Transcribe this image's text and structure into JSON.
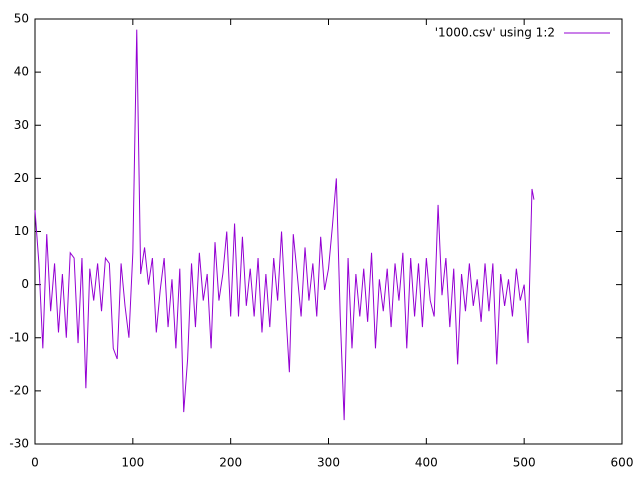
{
  "chart_data": {
    "type": "line",
    "xlim": [
      0,
      600
    ],
    "xticks": [
      0,
      100,
      200,
      300,
      400,
      500,
      600
    ],
    "ylim": [
      -30,
      50
    ],
    "yticks": [
      -30,
      -20,
      -10,
      0,
      10,
      20,
      30,
      40,
      50
    ],
    "legend": "top-right",
    "series": [
      {
        "name": "'1000.csv' using 1:2",
        "color": "#9400d3",
        "x": [
          0,
          4,
          8,
          12,
          16,
          20,
          24,
          28,
          32,
          36,
          40,
          44,
          48,
          52,
          56,
          60,
          64,
          68,
          72,
          76,
          80,
          84,
          88,
          92,
          96,
          100,
          104,
          108,
          112,
          116,
          120,
          124,
          128,
          132,
          136,
          140,
          144,
          148,
          152,
          156,
          160,
          164,
          168,
          172,
          176,
          180,
          184,
          188,
          192,
          196,
          200,
          204,
          208,
          212,
          216,
          220,
          224,
          228,
          232,
          236,
          240,
          244,
          248,
          252,
          256,
          260,
          264,
          268,
          272,
          276,
          280,
          284,
          288,
          292,
          296,
          300,
          304,
          308,
          312,
          316,
          320,
          324,
          328,
          332,
          336,
          340,
          344,
          348,
          352,
          356,
          360,
          364,
          368,
          372,
          376,
          380,
          384,
          388,
          392,
          396,
          400,
          404,
          408,
          412,
          416,
          420,
          424,
          428,
          432,
          436,
          440,
          444,
          448,
          452,
          456,
          460,
          464,
          468,
          472,
          476,
          480,
          484,
          488,
          492,
          496,
          500,
          504,
          508,
          510
        ],
        "values": [
          14,
          4,
          -12,
          9.5,
          -5,
          4,
          -9,
          2,
          -10,
          6,
          5,
          -11,
          5,
          -19.5,
          3,
          -3,
          4,
          -5,
          5,
          4,
          -12,
          -14,
          4,
          -4,
          -10,
          6,
          48,
          2,
          7,
          0,
          5,
          -9,
          -1,
          5,
          -8,
          1,
          -12,
          3,
          -24,
          -14,
          4,
          -8,
          6,
          -3,
          2,
          -12,
          8,
          -3,
          2,
          10,
          -6,
          11.5,
          -6,
          9,
          -4,
          3,
          -6,
          5,
          -9,
          2,
          -8,
          5,
          -3,
          10,
          -4,
          -16.5,
          9.5,
          2,
          -6,
          7,
          -3,
          4,
          -6,
          9,
          -1,
          3,
          11,
          20,
          -6,
          -25.5,
          5,
          -12,
          2,
          -6,
          3,
          -7,
          6,
          -12,
          1,
          -5,
          3,
          -8,
          4,
          -3,
          6,
          -12,
          5,
          -6,
          4,
          -8,
          5,
          -3,
          -6,
          15,
          -2,
          5,
          -8,
          3,
          -15,
          2,
          -5,
          4,
          -4,
          1,
          -7,
          4,
          -5,
          4,
          -15,
          2,
          -4,
          1,
          -6,
          3,
          -3,
          0,
          -11,
          18,
          16
        ]
      }
    ]
  }
}
